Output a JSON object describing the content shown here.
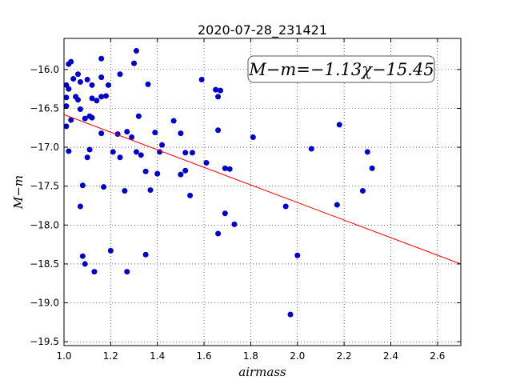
{
  "chart_data": {
    "type": "scatter",
    "title": "2020-07-28_231421",
    "xlabel": "airmass",
    "ylabel": "M−m",
    "xlim": [
      1.0,
      2.7
    ],
    "ylim": [
      -19.55,
      -15.6
    ],
    "x_ticks": [
      "1.0",
      "1.2",
      "1.4",
      "1.6",
      "1.8",
      "2.0",
      "2.2",
      "2.4",
      "2.6"
    ],
    "y_ticks": [
      "−16.0",
      "−16.5",
      "−17.0",
      "−17.5",
      "−18.0",
      "−18.5",
      "−19.0",
      "−19.5"
    ],
    "grid": true,
    "annotation": "M−m=−1.13χ−15.45",
    "fit": {
      "slope": -1.13,
      "intercept": -15.45,
      "color": "#ff0000"
    },
    "series": [
      {
        "color": "#0000cc",
        "points": [
          [
            1.01,
            -16.2
          ],
          [
            1.02,
            -15.93
          ],
          [
            1.03,
            -15.9
          ],
          [
            1.01,
            -16.36
          ],
          [
            1.02,
            -16.25
          ],
          [
            1.01,
            -16.47
          ],
          [
            1.03,
            -16.65
          ],
          [
            1.01,
            -16.73
          ],
          [
            1.02,
            -17.05
          ],
          [
            1.04,
            -16.12
          ],
          [
            1.05,
            -16.35
          ],
          [
            1.06,
            -16.06
          ],
          [
            1.06,
            -16.39
          ],
          [
            1.07,
            -16.16
          ],
          [
            1.07,
            -16.51
          ],
          [
            1.09,
            -16.63
          ],
          [
            1.1,
            -16.13
          ],
          [
            1.11,
            -16.6
          ],
          [
            1.12,
            -16.62
          ],
          [
            1.11,
            -17.03
          ],
          [
            1.1,
            -17.13
          ],
          [
            1.08,
            -17.49
          ],
          [
            1.07,
            -17.76
          ],
          [
            1.08,
            -18.4
          ],
          [
            1.09,
            -18.5
          ],
          [
            1.12,
            -16.2
          ],
          [
            1.12,
            -16.37
          ],
          [
            1.14,
            -16.4
          ],
          [
            1.16,
            -15.86
          ],
          [
            1.16,
            -16.35
          ],
          [
            1.16,
            -16.1
          ],
          [
            1.18,
            -16.34
          ],
          [
            1.19,
            -16.2
          ],
          [
            1.16,
            -16.82
          ],
          [
            1.17,
            -17.51
          ],
          [
            1.2,
            -18.33
          ],
          [
            1.13,
            -18.6
          ],
          [
            1.21,
            -17.06
          ],
          [
            1.24,
            -16.06
          ],
          [
            1.23,
            -16.83
          ],
          [
            1.24,
            -17.13
          ],
          [
            1.26,
            -17.56
          ],
          [
            1.27,
            -16.8
          ],
          [
            1.29,
            -16.87
          ],
          [
            1.3,
            -15.92
          ],
          [
            1.31,
            -15.76
          ],
          [
            1.32,
            -16.6
          ],
          [
            1.31,
            -17.06
          ],
          [
            1.33,
            -17.1
          ],
          [
            1.35,
            -17.31
          ],
          [
            1.37,
            -17.55
          ],
          [
            1.36,
            -16.19
          ],
          [
            1.39,
            -16.81
          ],
          [
            1.4,
            -17.34
          ],
          [
            1.41,
            -17.06
          ],
          [
            1.42,
            -16.97
          ],
          [
            1.35,
            -18.38
          ],
          [
            1.27,
            -18.6
          ],
          [
            1.47,
            -16.66
          ],
          [
            1.5,
            -16.82
          ],
          [
            1.52,
            -17.07
          ],
          [
            1.5,
            -17.35
          ],
          [
            1.52,
            -17.3
          ],
          [
            1.55,
            -17.07
          ],
          [
            1.54,
            -17.62
          ],
          [
            1.59,
            -16.13
          ],
          [
            1.61,
            -17.2
          ],
          [
            1.65,
            -16.26
          ],
          [
            1.66,
            -16.35
          ],
          [
            1.67,
            -16.27
          ],
          [
            1.66,
            -16.78
          ],
          [
            1.69,
            -17.27
          ],
          [
            1.71,
            -17.28
          ],
          [
            1.69,
            -17.85
          ],
          [
            1.66,
            -18.11
          ],
          [
            1.73,
            -17.99
          ],
          [
            1.81,
            -16.87
          ],
          [
            1.95,
            -17.76
          ],
          [
            2.0,
            -18.39
          ],
          [
            1.97,
            -19.15
          ],
          [
            2.06,
            -17.02
          ],
          [
            2.17,
            -17.74
          ],
          [
            2.18,
            -16.71
          ],
          [
            2.28,
            -17.56
          ],
          [
            2.3,
            -17.06
          ],
          [
            2.32,
            -17.27
          ]
        ]
      }
    ]
  }
}
